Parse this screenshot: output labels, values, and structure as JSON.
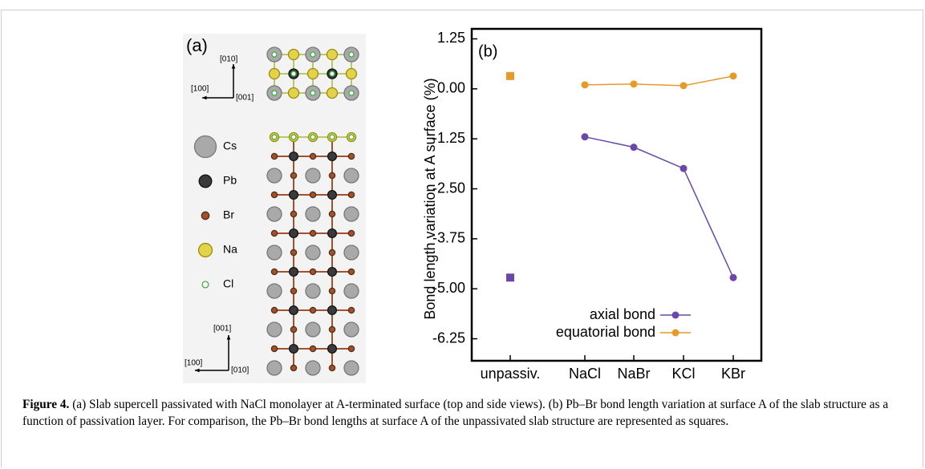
{
  "panel_a": {
    "label": "(a)",
    "top_axes": [
      "[010]",
      "[100]",
      "[001]"
    ],
    "legend": [
      "Cs",
      "Pb",
      "Br",
      "Na",
      "Cl"
    ],
    "side_axes": [
      "[001]",
      "[100]",
      "[010]"
    ]
  },
  "chart_data": {
    "type": "line",
    "panel_label": "(b)",
    "y_label": "Bond length variation at A surface (%)",
    "categories": [
      "unpassiv.",
      "NaCl",
      "NaBr",
      "KCl",
      "KBr"
    ],
    "series": [
      {
        "name": "axial bond",
        "color": "#6a48a8",
        "values": [
          -4.72,
          -1.2,
          -1.46,
          -1.99,
          -4.72
        ]
      },
      {
        "name": "equatorial bond",
        "color": "#e69a2a",
        "values": [
          0.32,
          0.1,
          0.12,
          0.08,
          0.32
        ]
      }
    ],
    "ylim": [
      -6.8,
      1.5
    ],
    "yticks": [
      1.25,
      {
        "value": 0,
        "label": "0.00"
      },
      -1.25,
      {
        "value": -2.5,
        "label": "-2.50"
      },
      -3.75,
      {
        "value": -5,
        "label": "-5.00"
      },
      -6.25
    ],
    "legend": "lower right"
  },
  "caption": {
    "label": "Figure 4.",
    "text": "(a) Slab supercell passivated with NaCl monolayer at A-terminated surface (top and side views). (b) Pb–Br bond length variation at surface A of the slab structure as a function of passivation layer. For comparison, the Pb–Br bond lengths at surface A of the unpassivated slab structure are represented as squares."
  }
}
